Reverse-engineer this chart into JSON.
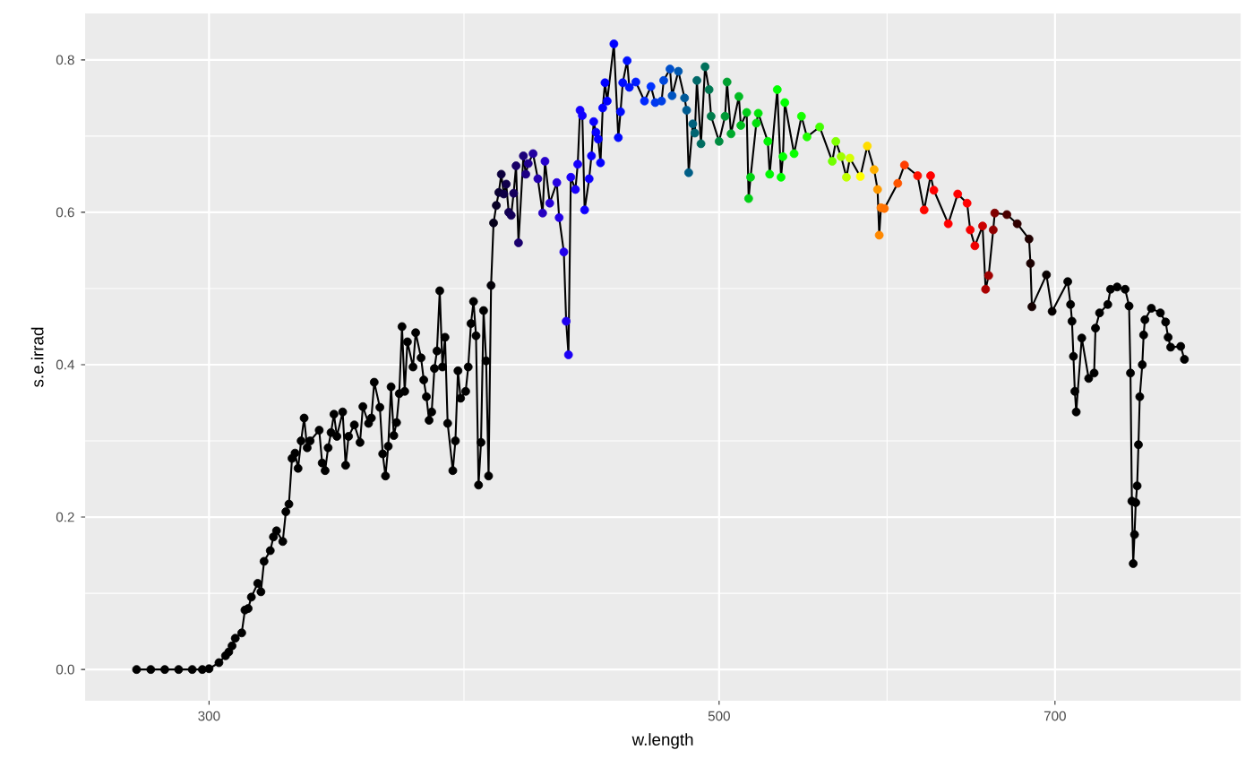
{
  "chart_data": {
    "type": "line",
    "xlabel": "w.length",
    "ylabel": "s.e.irrad",
    "log": "x",
    "grid": true,
    "marker": "circle",
    "line_style": "solid",
    "xlim": [
      265,
      843
    ],
    "ylim": [
      -0.041,
      0.861
    ],
    "xticks": [
      300,
      500,
      700
    ],
    "yticks": [
      {
        "value": 0,
        "label": "0.0"
      },
      {
        "value": 0.2,
        "label": "0.2"
      },
      {
        "value": 0.4,
        "label": "0.4"
      },
      {
        "value": 0.6,
        "label": "0.6"
      },
      {
        "value": 0.8,
        "label": "0.8"
      }
    ],
    "x": [
      279,
      283,
      287,
      291,
      295,
      298,
      300,
      303,
      305,
      306,
      307,
      308,
      310,
      311,
      312,
      313,
      315,
      316,
      317,
      319,
      320,
      321,
      323,
      324,
      325,
      326,
      327,
      328,
      329,
      330,
      331,
      332,
      335,
      336,
      337,
      338,
      339,
      340,
      341,
      343,
      344,
      345,
      347,
      349,
      350,
      352,
      353,
      354,
      356,
      357,
      358,
      359,
      360,
      361,
      362,
      363,
      364,
      365,
      366,
      368,
      369,
      371,
      372,
      373,
      374,
      375,
      376,
      377,
      378,
      379,
      380,
      381,
      383,
      384,
      385,
      386,
      388,
      389,
      390,
      391,
      392,
      393,
      394,
      395,
      396,
      397,
      398,
      399,
      400,
      401,
      402,
      403,
      404,
      405,
      406,
      407,
      408,
      409,
      411,
      412,
      413,
      415,
      417,
      419,
      420,
      422,
      425,
      426,
      428,
      429,
      430,
      431,
      433,
      434,
      435,
      436,
      437,
      439,
      440,
      441,
      442,
      443,
      444,
      445,
      446,
      447,
      450,
      452,
      453,
      454,
      456,
      457,
      460,
      464,
      467,
      469,
      472,
      473,
      476,
      477,
      480,
      483,
      484,
      485,
      487,
      488,
      489,
      491,
      493,
      495,
      496,
      500,
      503,
      504,
      506,
      510,
      511,
      514,
      515,
      516,
      519,
      520,
      525,
      526,
      530,
      532,
      533,
      534,
      539,
      543,
      546,
      553,
      560,
      562,
      565,
      568,
      570,
      576,
      580,
      584,
      586,
      587,
      588,
      590,
      598,
      602,
      610,
      614,
      618,
      620,
      629,
      635,
      641,
      643,
      646,
      651,
      653,
      655,
      658,
      659,
      667,
      674,
      682,
      683,
      684,
      694,
      698,
      709,
      711,
      712,
      713,
      714,
      715,
      719,
      724,
      728,
      729,
      732,
      738,
      740,
      745,
      751,
      754,
      755,
      756,
      757,
      758,
      759,
      760,
      761,
      762,
      764,
      765,
      766,
      771,
      778,
      782,
      784,
      786,
      794,
      797
    ],
    "series": [
      {
        "color": "#000000",
        "values": [
          0,
          0,
          0,
          0,
          0,
          0,
          0.001,
          0.009,
          0.018,
          0.023,
          0.031,
          0.041,
          0.048,
          0.078,
          0.08,
          0.095,
          0.113,
          0.102,
          0.142,
          0.156,
          0.174,
          0.182,
          0.168,
          0.207,
          0.217,
          0.277,
          0.284,
          0.264,
          0.3,
          0.33,
          0.291,
          0.3,
          0.314,
          0.271,
          0.261,
          0.291,
          0.311,
          0.335,
          0.306,
          0.338,
          0.268,
          0.306,
          0.321,
          0.298,
          0.345,
          0.323,
          0.33,
          0.377,
          0.344,
          0.283,
          0.254,
          0.293,
          0.371,
          0.307,
          0.324,
          0.362,
          0.45,
          0.365,
          0.43,
          0.397,
          0.442,
          0.409,
          0.38,
          0.358,
          0.327,
          0.338,
          0.395,
          0.418,
          0.497,
          0.397,
          0.436,
          0.323,
          0.261,
          0.3,
          0.392,
          0.356,
          0.365,
          0.397,
          0.454,
          0.483,
          0.438,
          0.242,
          0.298,
          0.471,
          0.405,
          0.254,
          0.504,
          0.586,
          0.609,
          0.626,
          0.65,
          0.624,
          0.637,
          0.6,
          0.596,
          0.625,
          0.661,
          0.56,
          0.674,
          0.65,
          0.664,
          0.677,
          0.644,
          0.599,
          0.667,
          0.612,
          0.639,
          0.593,
          0.548,
          0.457,
          0.413,
          0.646,
          0.63,
          0.663,
          0.734,
          0.727,
          0.603,
          0.644,
          0.674,
          0.719,
          0.705,
          0.696,
          0.665,
          0.737,
          0.77,
          0.746,
          0.821,
          0.698,
          0.732,
          0.77,
          0.799,
          0.764,
          0.771,
          0.746,
          0.765,
          0.744,
          0.746,
          0.773,
          0.788,
          0.753,
          0.785,
          0.75,
          0.734,
          0.652,
          0.716,
          0.704,
          0.773,
          0.69,
          0.791,
          0.761,
          0.726,
          0.693,
          0.726,
          0.771,
          0.703,
          0.752,
          0.714,
          0.731,
          0.618,
          0.646,
          0.717,
          0.73,
          0.693,
          0.65,
          0.761,
          0.646,
          0.673,
          0.744,
          0.677,
          0.726,
          0.699,
          0.712,
          0.667,
          0.693,
          0.673,
          0.646,
          0.671,
          0.647,
          0.687,
          0.656,
          0.63,
          0.57,
          0.606,
          0.605,
          0.638,
          0.662,
          0.648,
          0.603,
          0.648,
          0.629,
          0.585,
          0.624,
          0.612,
          0.577,
          0.556,
          0.582,
          0.499,
          0.517,
          0.577,
          0.599,
          0.597,
          0.585,
          0.565,
          0.533,
          0.476,
          0.518,
          0.47,
          0.509,
          0.479,
          0.457,
          0.411,
          0.365,
          0.338,
          0.435,
          0.382,
          0.389,
          0.448,
          0.468,
          0.479,
          0.499,
          0.502,
          0.499,
          0.477,
          0.389,
          0.221,
          0.139,
          0.177,
          0.219,
          0.241,
          0.295,
          0.358,
          0.4,
          0.439,
          0.459,
          0.474,
          0.468,
          0.456,
          0.436,
          0.423,
          0.424,
          0.407
        ],
        "colors": [
          "#000000",
          "#000000",
          "#000000",
          "#000000",
          "#000000",
          "#000000",
          "#000000",
          "#000000",
          "#000000",
          "#000000",
          "#000000",
          "#000000",
          "#000000",
          "#000000",
          "#000000",
          "#000000",
          "#000000",
          "#000000",
          "#000000",
          "#000000",
          "#000000",
          "#000000",
          "#000000",
          "#000000",
          "#000000",
          "#000000",
          "#000000",
          "#000000",
          "#000000",
          "#000000",
          "#000000",
          "#000000",
          "#000000",
          "#000000",
          "#000000",
          "#000000",
          "#000000",
          "#000000",
          "#000000",
          "#000000",
          "#000000",
          "#000000",
          "#000000",
          "#000000",
          "#000000",
          "#000000",
          "#000000",
          "#000000",
          "#000000",
          "#000000",
          "#000000",
          "#000000",
          "#000000",
          "#000000",
          "#000000",
          "#000000",
          "#000000",
          "#000000",
          "#000000",
          "#000000",
          "#000000",
          "#000000",
          "#000000",
          "#000000",
          "#000000",
          "#000000",
          "#000000",
          "#000000",
          "#000000",
          "#000000",
          "#000000",
          "#000000",
          "#000000",
          "#000000",
          "#000000",
          "#000000",
          "#000000",
          "#000000",
          "#000000",
          "#000000",
          "#000000",
          "#000000",
          "#000000",
          "#000000",
          "#000000",
          "#000000",
          "#020008",
          "#05001a",
          "#080026",
          "#0a0033",
          "#0c003d",
          "#0e0045",
          "#10004c",
          "#120052",
          "#140058",
          "#16005e",
          "#180066",
          "#1a006e",
          "#1c007a",
          "#1e0085",
          "#200090",
          "#2200a0",
          "#2400b0",
          "#2600c0",
          "#2600cc",
          "#2600d6",
          "#2400e0",
          "#2200e6",
          "#2000ec",
          "#1e00f0",
          "#1c00f5",
          "#1a00f8",
          "#1800fa",
          "#1600fc",
          "#1400ff",
          "#1200ff",
          "#1000ff",
          "#0e00ff",
          "#0c00ff",
          "#0a00ff",
          "#0800ff",
          "#0600ff",
          "#0400ff",
          "#0200ff",
          "#0000ff",
          "#0000ff",
          "#0000ff",
          "#0008ff",
          "#000aff",
          "#000cff",
          "#0010ff",
          "#0014ff",
          "#001cff",
          "#0028ff",
          "#0032ff",
          "#0038f0",
          "#0040e6",
          "#0048dd",
          "#0050cc",
          "#0054c0",
          "#0058b0",
          "#005a9a",
          "#005c90",
          "#005e86",
          "#00607c",
          "#006472",
          "#006868",
          "#006c60",
          "#00705a",
          "#007852",
          "#007c4c",
          "#008c40",
          "#009a36",
          "#00a030",
          "#00aa2c",
          "#00bb22",
          "#00c01e",
          "#00cc18",
          "#00d014",
          "#00d412",
          "#00e00c",
          "#00e408",
          "#00f404",
          "#00f802",
          "#00ff00",
          "#00ff00",
          "#00ff00",
          "#00ff00",
          "#08ff00",
          "#14ff00",
          "#20ff00",
          "#40ff00",
          "#70ff00",
          "#80ff00",
          "#a0ff00",
          "#c0ff00",
          "#d4ff00",
          "#ffff00",
          "#ffdd00",
          "#ffb000",
          "#ff9900",
          "#ff8800",
          "#ff7a00",
          "#ff7000",
          "#ff5500",
          "#ff3c00",
          "#ff1000",
          "#ff0800",
          "#ff0000",
          "#ff0000",
          "#ff0000",
          "#ff0000",
          "#ff0000",
          "#f60000",
          "#ee0000",
          "#cc0000",
          "#aa0000",
          "#a00000",
          "#900000",
          "#800000",
          "#4a0000",
          "#300000",
          "#200000",
          "#1a0000",
          "#140000",
          "#080000",
          "#040000",
          "#000000",
          "#000000",
          "#000000",
          "#000000",
          "#000000",
          "#000000",
          "#000000",
          "#000000",
          "#000000",
          "#000000",
          "#000000",
          "#000000",
          "#000000",
          "#000000",
          "#000000",
          "#000000",
          "#000000",
          "#000000",
          "#000000",
          "#000000",
          "#000000",
          "#000000",
          "#000000",
          "#000000",
          "#000000",
          "#000000",
          "#000000",
          "#000000",
          "#000000",
          "#000000",
          "#000000",
          "#000000",
          "#000000",
          "#000000"
        ]
      }
    ]
  }
}
